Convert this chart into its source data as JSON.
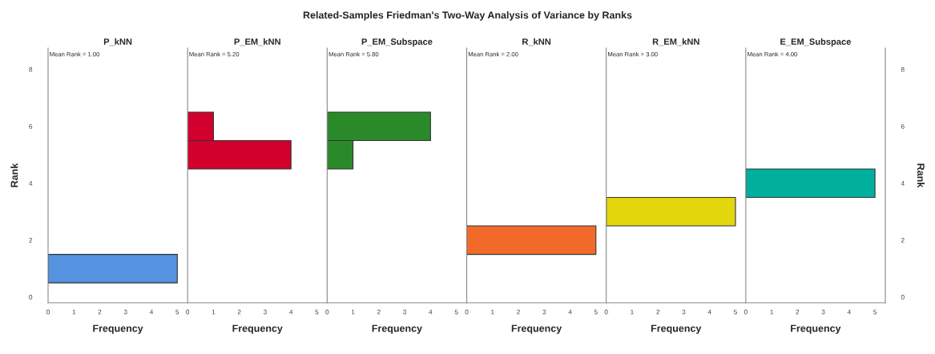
{
  "chart_data": [
    {
      "type": "histogram",
      "orientation": "horizontal",
      "title": "P_kNN",
      "ylabel": "Rank",
      "xlabel": "Frequency",
      "annotations": [
        "Mean Rank = 1.00",
        "Related-Samples Friedman's Two-Way Analysis of Variance by Ranks"
      ],
      "bins": [
        0.5,
        1.5
      ],
      "values": [
        5
      ],
      "color": "#5592e0",
      "xlim": [
        0,
        5.4
      ],
      "xticks": [
        0,
        1,
        2,
        3,
        4,
        5
      ],
      "ylim": [
        -0.2,
        8.75
      ],
      "yticks": [
        0,
        2,
        4,
        6,
        8
      ],
      "grid": false
    },
    {
      "type": "histogram",
      "orientation": "horizontal",
      "title": "P_EM_kNN",
      "xlabel": "Frequency",
      "annotations": [
        "Mean Rank = 5.20"
      ],
      "bins": [
        4.5,
        5.5,
        6.5
      ],
      "values": [
        4,
        1
      ],
      "color": "#d2002d",
      "xlim": [
        0,
        5.4
      ],
      "xticks": [
        0,
        1,
        2,
        3,
        4,
        5
      ],
      "ylim": [
        -0.2,
        8.75
      ],
      "tick_labels": "x",
      "grid": false
    },
    {
      "type": "histogram",
      "orientation": "horizontal",
      "title": "P_EM_Subspace",
      "xlabel": "Frequency",
      "annotations": [
        "Mean Rank = 5.80"
      ],
      "bins": [
        4.5,
        5.5,
        6.5
      ],
      "values": [
        1,
        4
      ],
      "color": "#2a8a2a",
      "xlim": [
        0,
        5.4
      ],
      "xticks": [
        0,
        1,
        2,
        3,
        4,
        5
      ],
      "ylim": [
        -0.2,
        8.75
      ],
      "tick_labels": "x",
      "grid": false
    },
    {
      "type": "histogram",
      "orientation": "horizontal",
      "title": "R_kNN",
      "xlabel": "Frequency",
      "annotations": [
        "Mean Rank = 2.00"
      ],
      "bins": [
        1.5,
        2.5
      ],
      "values": [
        5
      ],
      "color": "#f26a2a",
      "xlim": [
        0,
        5.4
      ],
      "xticks": [
        0,
        1,
        2,
        3,
        4,
        5
      ],
      "ylim": [
        -0.2,
        8.75
      ],
      "tick_labels": "x",
      "grid": false
    },
    {
      "type": "histogram",
      "orientation": "horizontal",
      "title": "R_EM_kNN",
      "xlabel": "Frequency",
      "annotations": [
        "Mean Rank = 3.00"
      ],
      "bins": [
        2.5,
        3.5
      ],
      "values": [
        5
      ],
      "color": "#e3d60d",
      "xlim": [
        0,
        5.4
      ],
      "xticks": [
        0,
        1,
        2,
        3,
        4,
        5
      ],
      "ylim": [
        -0.2,
        8.75
      ],
      "tick_labels": "x",
      "grid": false
    },
    {
      "type": "histogram",
      "orientation": "horizontal",
      "title": "E_EM_Subspace",
      "ylabel": "Rank",
      "xlabel": "Frequency",
      "annotations": [
        "Mean Rank = 4.00"
      ],
      "bins": [
        3.5,
        4.5
      ],
      "values": [
        5
      ],
      "color": "#00b09c",
      "xlim": [
        0,
        5.4
      ],
      "xticks": [
        0,
        1,
        2,
        3,
        4,
        5
      ],
      "ylim": [
        -0.2,
        8.75
      ],
      "yticks": [
        0,
        2,
        4,
        6,
        8
      ],
      "grid": false
    }
  ]
}
